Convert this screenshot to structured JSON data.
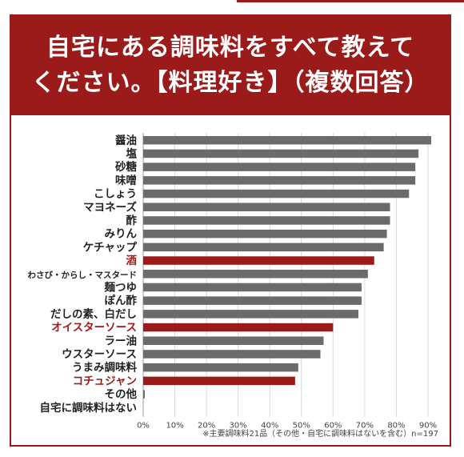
{
  "header": {
    "title_line1": "自宅にある調味料をすべて教えて",
    "title_line2": "ください。【料理好き】（複数回答）"
  },
  "footnote": "※主要調味料21品（その他・自宅に調味料はないを含む）n=197",
  "colors": {
    "accent": "#9b1b1b",
    "bar_default": "#6b6b6b",
    "bar_highlight": "#9b1b1b",
    "label_default": "#222222",
    "label_highlight": "#9b1b1b"
  },
  "chart_data": {
    "type": "bar",
    "orientation": "horizontal",
    "categories": [
      "醤油",
      "塩",
      "砂糖",
      "味噌",
      "こしょう",
      "マヨネーズ",
      "酢",
      "みりん",
      "ケチャップ",
      "酒",
      "わさび・からし・マスタード",
      "麺つゆ",
      "ぽん酢",
      "だしの素、白だし",
      "オイスターソース",
      "ラー油",
      "ウスターソース",
      "うまみ調味料",
      "コチュジャン",
      "その他",
      "自宅に調味料はない"
    ],
    "values": [
      91,
      87,
      86,
      86,
      84,
      78,
      78,
      77,
      76,
      73,
      71,
      69,
      69,
      68,
      60,
      57,
      56,
      49,
      48,
      0.5,
      0
    ],
    "highlighted": [
      "酒",
      "オイスターソース",
      "コチュジャン"
    ],
    "xlim": [
      0,
      90
    ],
    "xticks": [
      "0%",
      "10%",
      "20%",
      "30%",
      "40%",
      "50%",
      "60%",
      "70%",
      "80%",
      "90%"
    ],
    "grid": true
  }
}
